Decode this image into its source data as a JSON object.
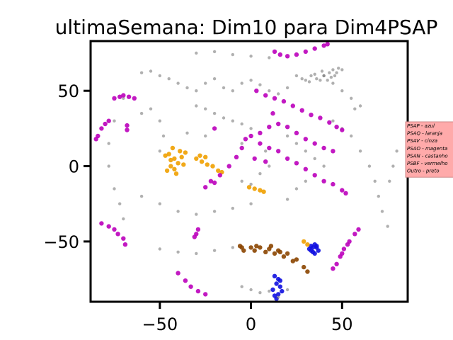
{
  "chart_data": {
    "type": "scatter",
    "title": "ultimaSemana: Dim10 para Dim4PSAP",
    "xlabel": "",
    "ylabel": "",
    "xlim": [
      -88,
      86
    ],
    "ylim": [
      -90,
      83
    ],
    "x_ticks": [
      -50,
      0,
      50
    ],
    "x_tick_labels": [
      "−50",
      "0",
      "50"
    ],
    "y_ticks": [
      50,
      0,
      -50
    ],
    "y_tick_labels": [
      "50",
      "0",
      "−50"
    ],
    "grid": false,
    "legend_position": "right, outside plot area",
    "legend_background": "#ffaaaa",
    "legend": [
      {
        "label": "PSAP - azul",
        "color": "#1010e0"
      },
      {
        "label": "PSAQ - laranja",
        "color": "#f0a000"
      },
      {
        "label": "PSAV - cinza",
        "color": "#707070"
      },
      {
        "label": "PSAO - magenta",
        "color": "#bb00bb"
      },
      {
        "label": "PSAN - castanho",
        "color": "#8b4500"
      },
      {
        "label": "PSBF - vermelho",
        "color": "#ff0000"
      },
      {
        "label": "Outro - preto",
        "color": "#000000"
      }
    ],
    "series": [
      {
        "name": "PSAP - azul",
        "color": "#1010e0",
        "points": [
          [
            32,
            -55
          ],
          [
            34,
            -57
          ],
          [
            36,
            -54
          ],
          [
            35,
            -52
          ],
          [
            33,
            -53
          ],
          [
            37,
            -56
          ],
          [
            34,
            -54
          ],
          [
            35,
            -58
          ],
          [
            33,
            -56
          ],
          [
            36,
            -53
          ],
          [
            13,
            -73
          ],
          [
            15,
            -75
          ],
          [
            14,
            -78
          ],
          [
            16,
            -80
          ],
          [
            12,
            -82
          ],
          [
            15,
            -85
          ],
          [
            13,
            -86
          ],
          [
            17,
            -83
          ],
          [
            14,
            -88
          ],
          [
            16,
            -76
          ]
        ]
      },
      {
        "name": "PSAQ - laranja",
        "color": "#f0a000",
        "points": [
          [
            -45,
            8
          ],
          [
            -42,
            5
          ],
          [
            -44,
            0
          ],
          [
            -40,
            2
          ],
          [
            -43,
            12
          ],
          [
            -38,
            6
          ],
          [
            -46,
            -3
          ],
          [
            -41,
            -5
          ],
          [
            -39,
            10
          ],
          [
            -44,
            4
          ],
          [
            -42,
            -2
          ],
          [
            -37,
            1
          ],
          [
            -36,
            9
          ],
          [
            -47,
            7
          ],
          [
            -30,
            5
          ],
          [
            -27,
            3
          ],
          [
            -24,
            1
          ],
          [
            -21,
            0
          ],
          [
            -18,
            -3
          ],
          [
            -16,
            -4
          ],
          [
            -25,
            6
          ],
          [
            -28,
            7
          ],
          [
            -1,
            -14
          ],
          [
            2,
            -15
          ],
          [
            5,
            -16
          ],
          [
            7,
            -17
          ],
          [
            29,
            -50
          ],
          [
            31,
            -52
          ]
        ]
      },
      {
        "name": "PSAV - cinza",
        "color": "#707070",
        "points": [
          [
            -60,
            62
          ],
          [
            -55,
            63
          ],
          [
            -50,
            60
          ],
          [
            -45,
            58
          ],
          [
            -40,
            55
          ],
          [
            -35,
            52
          ],
          [
            -30,
            50
          ],
          [
            -25,
            55
          ],
          [
            -20,
            58
          ],
          [
            -15,
            52
          ],
          [
            -10,
            50
          ],
          [
            -5,
            55
          ],
          [
            0,
            57
          ],
          [
            5,
            54
          ],
          [
            10,
            50
          ],
          [
            15,
            48
          ],
          [
            20,
            52
          ],
          [
            -70,
            45
          ],
          [
            -75,
            30
          ],
          [
            -78,
            15
          ],
          [
            -78,
            0
          ],
          [
            -75,
            -15
          ],
          [
            -72,
            -25
          ],
          [
            -70,
            -35
          ],
          [
            -60,
            35
          ],
          [
            -55,
            38
          ],
          [
            -50,
            30
          ],
          [
            -48,
            20
          ],
          [
            -50,
            10
          ],
          [
            -30,
            40
          ],
          [
            -25,
            38
          ],
          [
            -20,
            35
          ],
          [
            -10,
            30
          ],
          [
            -5,
            28
          ],
          [
            0,
            25
          ],
          [
            -15,
            32
          ],
          [
            -60,
            -20
          ],
          [
            -50,
            -25
          ],
          [
            -40,
            -30
          ],
          [
            -30,
            -32
          ],
          [
            -20,
            -30
          ],
          [
            -10,
            -28
          ],
          [
            0,
            -25
          ],
          [
            20,
            20
          ],
          [
            25,
            15
          ],
          [
            30,
            10
          ],
          [
            35,
            5
          ],
          [
            40,
            0
          ],
          [
            30,
            -10
          ],
          [
            25,
            -15
          ],
          [
            20,
            -22
          ],
          [
            45,
            30
          ],
          [
            50,
            25
          ],
          [
            55,
            20
          ],
          [
            60,
            10
          ],
          [
            65,
            0
          ],
          [
            68,
            -10
          ],
          [
            70,
            -20
          ],
          [
            72,
            -30
          ],
          [
            75,
            -40
          ],
          [
            60,
            40
          ],
          [
            55,
            45
          ],
          [
            50,
            50
          ],
          [
            45,
            55
          ],
          [
            40,
            60
          ],
          [
            57,
            38
          ],
          [
            -50,
            -55
          ],
          [
            -40,
            -57
          ],
          [
            -30,
            -58
          ],
          [
            -20,
            -56
          ],
          [
            -10,
            -54
          ],
          [
            -5,
            -80
          ],
          [
            0,
            -82
          ],
          [
            5,
            -84
          ],
          [
            10,
            -83
          ],
          [
            20,
            -82
          ],
          [
            15,
            -87
          ],
          [
            -30,
            75
          ],
          [
            -20,
            76
          ],
          [
            -10,
            74
          ],
          [
            0,
            73
          ],
          [
            10,
            72
          ],
          [
            -5,
            -10
          ],
          [
            0,
            -12
          ],
          [
            5,
            -5
          ],
          [
            10,
            0
          ],
          [
            -35,
            22
          ],
          [
            -25,
            20
          ],
          [
            80,
            10
          ],
          [
            78,
            0
          ],
          [
            76,
            -10
          ],
          [
            -5,
            15
          ],
          [
            8,
            10
          ]
        ]
      },
      {
        "name": "PSAO - magenta",
        "color": "#bb00bb",
        "points": [
          [
            -82,
            25
          ],
          [
            -80,
            28
          ],
          [
            -78,
            30
          ],
          [
            -84,
            20
          ],
          [
            -85,
            18
          ],
          [
            -75,
            45
          ],
          [
            -72,
            46
          ],
          [
            -70,
            47
          ],
          [
            -67,
            46
          ],
          [
            -64,
            45
          ],
          [
            -68,
            24
          ],
          [
            -68,
            27
          ],
          [
            -40,
            -71
          ],
          [
            -36,
            -76
          ],
          [
            -33,
            -80
          ],
          [
            -29,
            -83
          ],
          [
            -25,
            -85
          ],
          [
            -82,
            -38
          ],
          [
            -78,
            -40
          ],
          [
            -75,
            -42
          ],
          [
            -70,
            -48
          ],
          [
            -69,
            -52
          ],
          [
            -73,
            -45
          ],
          [
            -30,
            -45
          ],
          [
            -29,
            -42
          ],
          [
            -31,
            -47
          ],
          [
            3,
            50
          ],
          [
            8,
            47
          ],
          [
            13,
            45
          ],
          [
            18,
            43
          ],
          [
            23,
            40
          ],
          [
            28,
            37
          ],
          [
            33,
            34
          ],
          [
            38,
            32
          ],
          [
            43,
            29
          ],
          [
            47,
            26
          ],
          [
            50,
            24
          ],
          [
            5,
            22
          ],
          [
            10,
            26
          ],
          [
            15,
            28
          ],
          [
            20,
            26
          ],
          [
            25,
            22
          ],
          [
            30,
            18
          ],
          [
            35,
            15
          ],
          [
            40,
            12
          ],
          [
            45,
            10
          ],
          [
            -3,
            18
          ],
          [
            -5,
            12
          ],
          [
            -8,
            6
          ],
          [
            -12,
            0
          ],
          [
            -17,
            -6
          ],
          [
            -22,
            -10
          ],
          [
            -25,
            -14
          ],
          [
            -20,
            -11
          ],
          [
            15,
            10
          ],
          [
            20,
            5
          ],
          [
            25,
            2
          ],
          [
            30,
            -2
          ],
          [
            35,
            -6
          ],
          [
            40,
            -10
          ],
          [
            45,
            -12
          ],
          [
            50,
            -16
          ],
          [
            52,
            -18
          ],
          [
            0,
            20
          ],
          [
            5,
            15
          ],
          [
            10,
            12
          ],
          [
            2,
            5
          ],
          [
            8,
            3
          ],
          [
            13,
            76
          ],
          [
            16,
            74
          ],
          [
            20,
            73
          ],
          [
            25,
            74
          ],
          [
            30,
            76
          ],
          [
            35,
            78
          ],
          [
            40,
            80
          ],
          [
            42,
            81
          ],
          [
            45,
            -68
          ],
          [
            47,
            -65
          ],
          [
            49,
            -60
          ],
          [
            51,
            -55
          ],
          [
            54,
            -50
          ],
          [
            57,
            -45
          ],
          [
            59,
            -42
          ],
          [
            50,
            -58
          ],
          [
            53,
            -52
          ],
          [
            -20,
            25
          ],
          [
            12,
            35
          ]
        ]
      },
      {
        "name": "PSAN - castanho",
        "color": "#8b4500",
        "points": [
          [
            -5,
            -54
          ],
          [
            0,
            -54
          ],
          [
            5,
            -54
          ],
          [
            10,
            -55
          ],
          [
            15,
            -56
          ],
          [
            20,
            -58
          ],
          [
            25,
            -62
          ],
          [
            29,
            -67
          ],
          [
            31,
            -70
          ],
          [
            -4,
            -56
          ],
          [
            2,
            -56
          ],
          [
            8,
            -57
          ],
          [
            13,
            -58
          ],
          [
            18,
            -60
          ],
          [
            23,
            -63
          ],
          [
            -6,
            -53
          ],
          [
            3,
            -53
          ],
          [
            11,
            -53
          ],
          [
            16,
            -57
          ]
        ]
      },
      {
        "name": "PSBF - vermelho",
        "color": "#ff0000",
        "points": []
      },
      {
        "name": "Outro - preto",
        "color": "#000000",
        "points": []
      },
      {
        "name": "",
        "color": "#707070",
        "points": [
          [
            25,
            60
          ],
          [
            28,
            58
          ],
          [
            32,
            56
          ],
          [
            36,
            58
          ],
          [
            40,
            60
          ],
          [
            43,
            62
          ],
          [
            45,
            64
          ],
          [
            48,
            65
          ],
          [
            50,
            64
          ],
          [
            35,
            61
          ],
          [
            38,
            57
          ],
          [
            46,
            60
          ],
          [
            42,
            57
          ],
          [
            33,
            60
          ],
          [
            47,
            62
          ],
          [
            44,
            59
          ],
          [
            39,
            63
          ],
          [
            30,
            57
          ]
        ]
      }
    ]
  }
}
